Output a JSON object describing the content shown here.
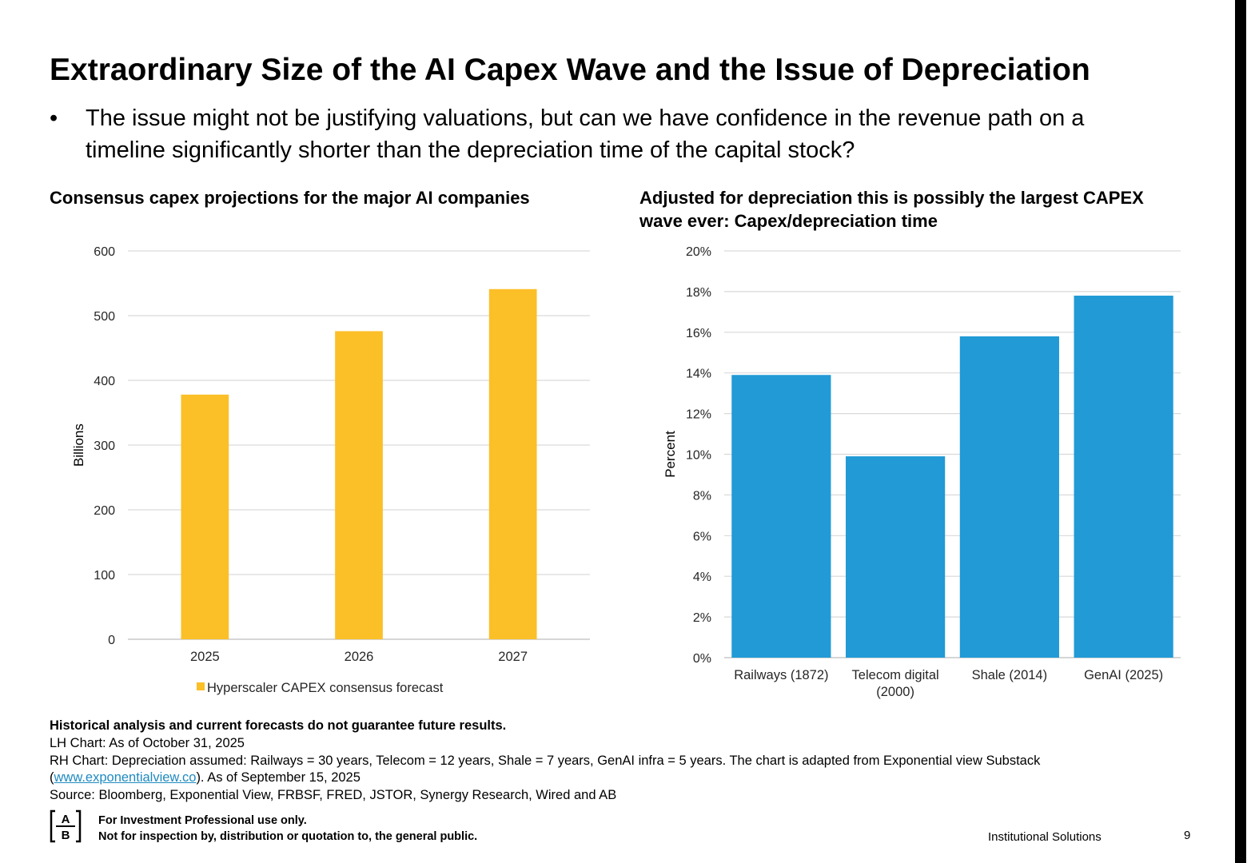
{
  "title": "Extraordinary Size of the AI Capex Wave and the Issue of Depreciation",
  "bullet": {
    "marker": "•",
    "line1": "The issue might not be justifying valuations, but can we have confidence in the revenue path on a",
    "line2": "timeline significantly shorter than the depreciation time of the capital stock?"
  },
  "chart_data": [
    {
      "type": "bar",
      "title": "Consensus capex projections for the major AI companies",
      "categories": [
        "2025",
        "2026",
        "2027"
      ],
      "series": [
        {
          "name": "Hyperscaler CAPEX consensus forecast",
          "values": [
            378,
            476,
            541
          ]
        }
      ],
      "ylabel": "Billions",
      "xlabel": "",
      "ylim": [
        0,
        600
      ],
      "yticks": [
        0,
        100,
        200,
        300,
        400,
        500,
        600
      ],
      "ytick_labels": [
        "0",
        "100",
        "200",
        "300",
        "400",
        "500",
        "600"
      ],
      "grid": true,
      "legend": "bottom",
      "color": "#fbbf28"
    },
    {
      "type": "bar",
      "title_line1": "Adjusted for depreciation this is possibly the largest CAPEX",
      "title_line2": "wave ever: Capex/depreciation time",
      "categories": [
        [
          "Railways (1872)"
        ],
        [
          "Telecom digital",
          "(2000)"
        ],
        [
          "Shale (2014)"
        ],
        [
          "GenAI (2025)"
        ]
      ],
      "values": [
        13.9,
        9.9,
        15.8,
        17.8
      ],
      "ylabel": "Percent",
      "xlabel": "",
      "ylim": [
        0,
        20
      ],
      "yticks": [
        0,
        2,
        4,
        6,
        8,
        10,
        12,
        14,
        16,
        18,
        20
      ],
      "ytick_labels": [
        "0%",
        "2%",
        "4%",
        "6%",
        "8%",
        "10%",
        "12%",
        "14%",
        "16%",
        "18%",
        "20%"
      ],
      "grid": true,
      "legend": "none",
      "color": "#219ad6"
    }
  ],
  "notes": {
    "warning": "Historical analysis and current forecasts do not guarantee future results.",
    "lh": "LH Chart: As of October 31, 2025",
    "rh_part1": "RH Chart: Depreciation assumed: Railways = 30 years, Telecom = 12 years, Shale = 7 years, GenAI infra = 5 years. The chart is adapted from Exponential view Substack",
    "rh_open": "(",
    "rh_link": "www.exponentialview.co",
    "rh_part2": "). As of September 15, 2025",
    "source": "Source: Bloomberg, Exponential View, FRBSF, FRED, JSTOR, Synergy Research, Wired and AB"
  },
  "footer": {
    "logo_letters": "AB",
    "disclaimer1": "For Investment Professional use only.",
    "disclaimer2": "Not for inspection by, distribution or quotation to, the general public.",
    "label": "Institutional Solutions",
    "page": "9"
  }
}
